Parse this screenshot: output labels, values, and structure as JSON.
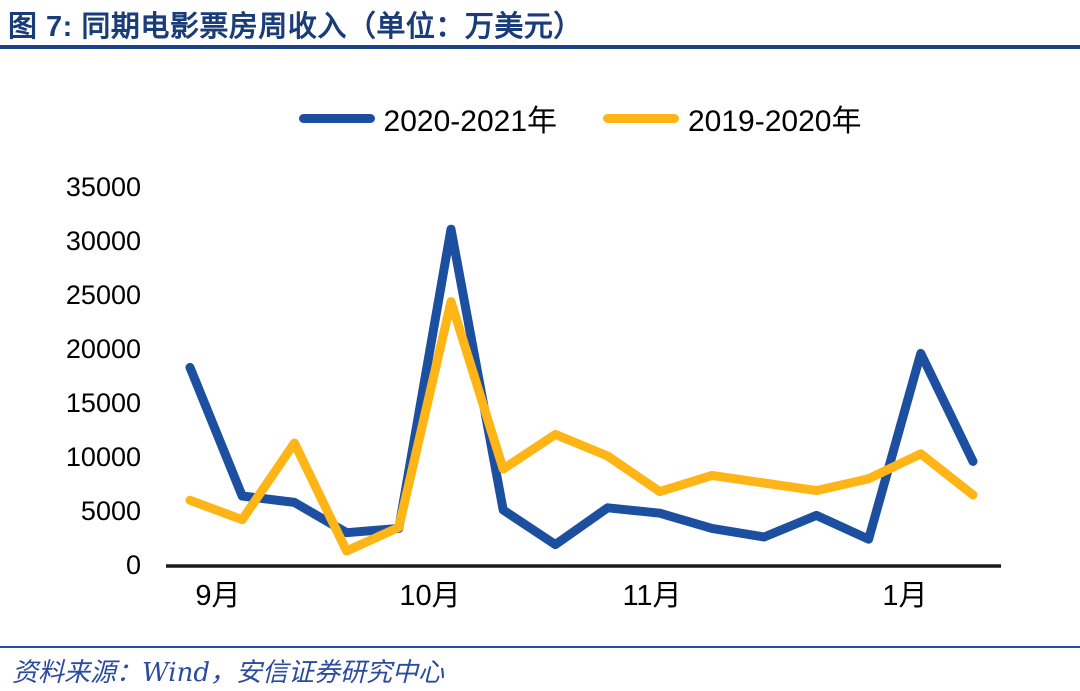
{
  "header": {
    "title": "图 7: 同期电影票房周收入（单位：万美元）"
  },
  "footer": {
    "source": "资料来源：Wind，安信证券研究中心"
  },
  "colors": {
    "title_navy": "#1a3c78",
    "rule_navy": "#1e418f",
    "footer_blue": "#2b4b9e",
    "axis_black": "#1a1a1a",
    "series_blue": "#1d4fa1",
    "series_yellow": "#ffb515"
  },
  "chart_data": {
    "type": "line",
    "title": "图 7: 同期电影票房周收入（单位：万美元）",
    "unit": "万美元",
    "x": [
      1,
      2,
      3,
      4,
      5,
      6,
      7,
      8,
      9,
      10,
      11,
      12,
      13,
      14,
      15,
      16
    ],
    "x_tick_labels": [
      "9月",
      "10月",
      "11月",
      "1月"
    ],
    "y_ticks": [
      0,
      5000,
      10000,
      15000,
      20000,
      25000,
      30000,
      35000
    ],
    "ylim": [
      0,
      35000
    ],
    "grid": "off",
    "legend_position": "top",
    "series": [
      {
        "name": "2020-2021年",
        "color": "#1d4fa1",
        "values": [
          18200,
          6300,
          5700,
          2900,
          3300,
          31000,
          5000,
          1800,
          5200,
          4700,
          3300,
          2500,
          4500,
          2300,
          19500,
          9500
        ]
      },
      {
        "name": "2019-2020年",
        "color": "#ffb515",
        "values": [
          5900,
          4100,
          11200,
          1200,
          3400,
          24300,
          8800,
          12000,
          10000,
          6700,
          8200,
          7500,
          6800,
          7900,
          10200,
          6400
        ]
      }
    ]
  }
}
